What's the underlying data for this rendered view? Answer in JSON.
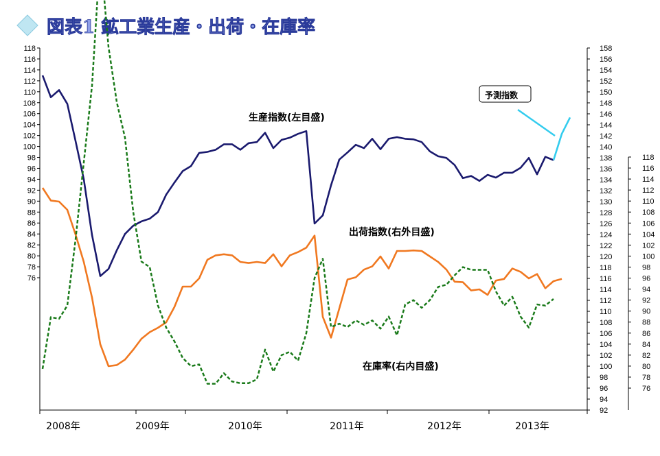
{
  "title": "図表1 鉱工業生産・出荷・在庫率",
  "chart_data": {
    "type": "line",
    "title": "図表1 鉱工業生産・出荷・在庫率",
    "x_labels": [
      "2008年",
      "2009年",
      "2010年",
      "2011年",
      "2012年",
      "2013年"
    ],
    "left_axis": {
      "min": 76,
      "max": 118,
      "step": 2
    },
    "right_outer_axis": {
      "min": 92,
      "max": 158,
      "step": 2
    },
    "right_inner_axis": {
      "min": 76,
      "max": 118,
      "step": 2
    },
    "annotation": "予測指数",
    "series": [
      {
        "name": "生産指数(左目盛)",
        "axis": "left",
        "color": "#1a1a6e",
        "style": "solid",
        "values": [
          113.0,
          109.0,
          110.3,
          107.8,
          101.0,
          94.0,
          83.8,
          76.3,
          77.6,
          81.0,
          84.0,
          85.5,
          86.3,
          86.8,
          88.0,
          91.2,
          93.4,
          95.5,
          96.4,
          98.8,
          99.0,
          99.4,
          100.4,
          100.4,
          99.4,
          100.6,
          100.8,
          102.5,
          99.7,
          101.2,
          101.6,
          102.3,
          102.8,
          85.9,
          87.4,
          92.9,
          97.6,
          98.9,
          100.3,
          99.7,
          101.4,
          99.5,
          101.4,
          101.7,
          101.4,
          101.3,
          100.8,
          99.1,
          98.2,
          97.9,
          96.6,
          94.2,
          94.6,
          93.7,
          94.8,
          94.3,
          95.2,
          95.2,
          96.1,
          97.9,
          94.9,
          98.1,
          97.5
        ]
      },
      {
        "name": "予測指数",
        "axis": "left",
        "color": "#33ccee",
        "style": "solid",
        "values": [
          null,
          null,
          null,
          null,
          null,
          null,
          null,
          null,
          null,
          null,
          null,
          null,
          null,
          null,
          null,
          null,
          null,
          null,
          null,
          null,
          null,
          null,
          null,
          null,
          null,
          null,
          null,
          null,
          null,
          null,
          null,
          null,
          null,
          null,
          null,
          null,
          null,
          null,
          null,
          null,
          null,
          null,
          null,
          null,
          null,
          null,
          null,
          null,
          null,
          null,
          null,
          null,
          null,
          null,
          null,
          null,
          null,
          null,
          null,
          null,
          null,
          null,
          97.5,
          102.3,
          105.3
        ]
      },
      {
        "name": "出荷指数(右外目盛)",
        "axis": "right_outer",
        "color": "#f07820",
        "style": "solid",
        "values": [
          132.5,
          130.2,
          130.0,
          128.5,
          124.0,
          119.0,
          112.5,
          104.0,
          100.0,
          100.2,
          101.2,
          103.0,
          105.0,
          106.2,
          107.0,
          108.0,
          110.8,
          114.5,
          114.5,
          116.0,
          119.4,
          120.2,
          120.4,
          120.2,
          119.0,
          118.8,
          119.0,
          118.8,
          120.4,
          118.2,
          120.2,
          120.8,
          121.6,
          123.8,
          109.0,
          105.2,
          110.5,
          115.8,
          116.2,
          117.6,
          118.2,
          120.0,
          117.8,
          121.0,
          121.0,
          121.1,
          121.0,
          120.0,
          119.0,
          117.6,
          115.4,
          115.3,
          113.8,
          114.0,
          113.0,
          115.6,
          115.9,
          117.8,
          117.2,
          116.0,
          116.8,
          114.2,
          115.5,
          115.9
        ]
      },
      {
        "name": "在庫率(右内目盛)",
        "axis": "right_inner",
        "color": "#1a7a1a",
        "style": "dashed",
        "values": [
          79.5,
          88.9,
          88.6,
          91.0,
          103.0,
          117.0,
          131.0,
          155.0,
          138.0,
          128.0,
          121.5,
          108.0,
          99.0,
          98.0,
          91.0,
          87.0,
          84.5,
          81.5,
          80.0,
          80.3,
          76.8,
          76.8,
          78.7,
          77.2,
          76.9,
          76.9,
          77.6,
          83.0,
          79.0,
          82.0,
          82.6,
          81.0,
          86.0,
          96.0,
          99.5,
          87.1,
          87.7,
          87.1,
          88.3,
          87.5,
          88.3,
          86.8,
          89.0,
          85.6,
          91.2,
          92.0,
          90.6,
          92.0,
          94.4,
          94.8,
          96.5,
          98.0,
          97.5,
          97.5,
          97.5,
          93.6,
          91.0,
          92.6,
          89.0,
          87.0,
          91.2,
          91.0,
          92.2
        ]
      }
    ]
  },
  "labels": {
    "production": "生産指数(左目盛)",
    "shipments": "出荷指数(右外目盛)",
    "inventory": "在庫率(右内目盛)",
    "forecast": "予測指数"
  },
  "colors": {
    "production": "#1a1a6e",
    "forecast": "#33ccee",
    "shipments": "#f07820",
    "inventory": "#1a7a1a"
  }
}
